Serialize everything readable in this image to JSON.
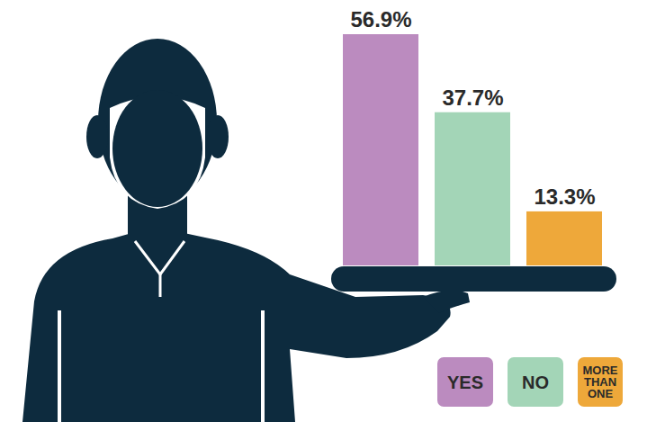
{
  "chart_data": {
    "type": "bar",
    "categories": [
      "YES",
      "NO",
      "MORE THAN ONE"
    ],
    "values": [
      56.9,
      37.7,
      13.3
    ],
    "value_labels": [
      "56.9%",
      "37.7%",
      "13.3%"
    ],
    "colors": [
      "#bb8bbf",
      "#a3d5b7",
      "#eea83a"
    ],
    "ylim": [
      0,
      56.9
    ],
    "data_labels": true,
    "tick_labels": false,
    "legend": "bottom-right"
  }
}
